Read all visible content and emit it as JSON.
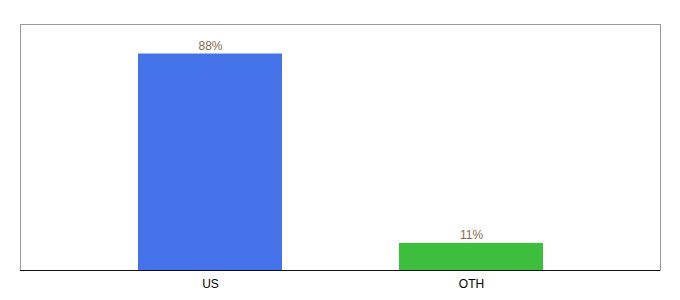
{
  "chart_data": {
    "type": "bar",
    "categories": [
      "US",
      "OTH"
    ],
    "values": [
      88,
      11
    ],
    "value_labels": [
      "88%",
      "11%"
    ],
    "colors": [
      "#4472e8",
      "#3dbf3d"
    ],
    "ylim": [
      0,
      100
    ],
    "data_labels": true,
    "tick_labels": "x",
    "grid": false
  }
}
